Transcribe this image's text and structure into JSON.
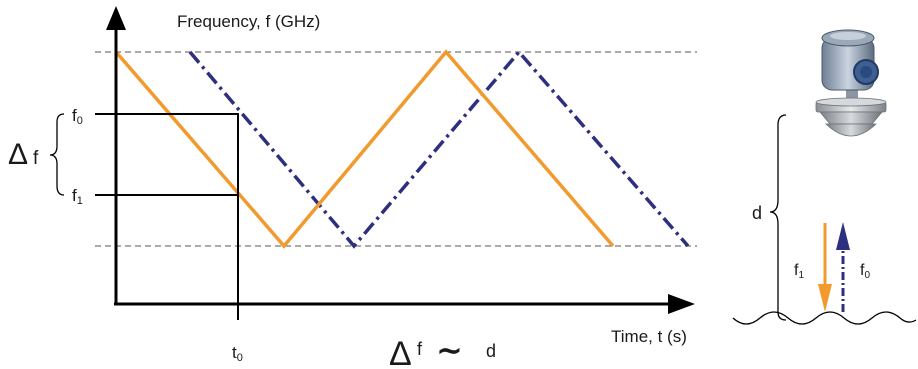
{
  "labels": {
    "y_axis": "Frequency, f (GHz)",
    "x_axis": "Time, t (s)",
    "f0": "f",
    "f0_sub": "0",
    "f1": "f",
    "f1_sub": "1",
    "t0": "t",
    "t0_sub": "0",
    "delta_symbol": "Δ",
    "delta_f_letter": "f",
    "relation_delta": "Δ",
    "relation_f": "f",
    "relation_tilde": "∼",
    "relation_d": "d",
    "d": "d",
    "right_f1": "f",
    "right_f1_sub": "1",
    "right_f0": "f",
    "right_f0_sub": "0"
  },
  "colors": {
    "transmitted": "#f29a2e",
    "received": "#2e2f7f",
    "axis": "#000000"
  },
  "icons": {
    "device": "radar-level-transmitter-icon",
    "liquid_surface": "liquid-surface-icon"
  }
}
